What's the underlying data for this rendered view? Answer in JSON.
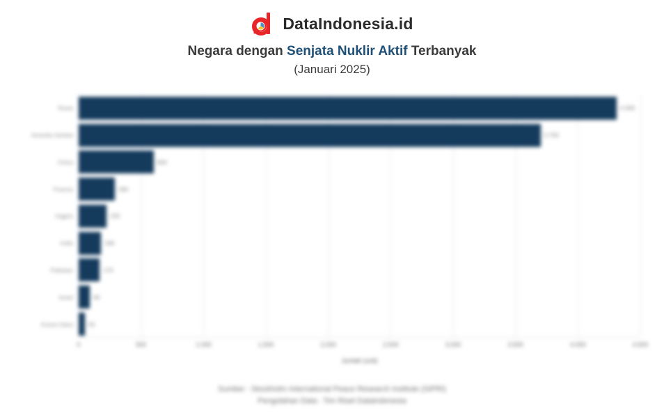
{
  "brand": {
    "name": "DataIndonesia.id"
  },
  "title": {
    "prefix": "Negara dengan ",
    "highlight": "Senjata Nuklir Aktif",
    "suffix": " Terbanyak",
    "subtitle": "(Januari 2025)"
  },
  "chart_data": {
    "type": "bar",
    "orientation": "horizontal",
    "title": "Negara dengan Senjata Nuklir Aktif Terbanyak (Januari 2025)",
    "categories": [
      "Rusia",
      "Amerika Serikat",
      "China",
      "Prancis",
      "Inggris",
      "India",
      "Pakistan",
      "Israel",
      "Korea Utara"
    ],
    "values": [
      4309,
      3700,
      600,
      290,
      225,
      180,
      170,
      90,
      50
    ],
    "value_labels": [
      "4.309",
      "3.700",
      "600",
      "290",
      "225",
      "180",
      "170",
      "90",
      "50"
    ],
    "xlabel": "Jumlah (unit)",
    "xlim": [
      0,
      4500
    ],
    "xticks": [
      0,
      500,
      1000,
      1500,
      2000,
      2500,
      3000,
      3500,
      4000,
      4500
    ],
    "xtick_labels": [
      "0",
      "500",
      "1.000",
      "1.500",
      "2.000",
      "2.500",
      "3.000",
      "3.500",
      "4.000",
      "4.500"
    ],
    "bar_color": "#143a5c",
    "grid": true,
    "legend": false
  },
  "footer": {
    "source": "Sumber : Stockholm International Peace Research Institute (SIPRI)",
    "credit": "Pengolahan Data : Tim Riset Dataindonesia"
  },
  "colors": {
    "accent_blue": "#1f5077",
    "bar": "#143a5c",
    "logo_red": "#e8262a",
    "text_dark": "#3a3a3a",
    "muted_gray": "#7d7d7d"
  }
}
